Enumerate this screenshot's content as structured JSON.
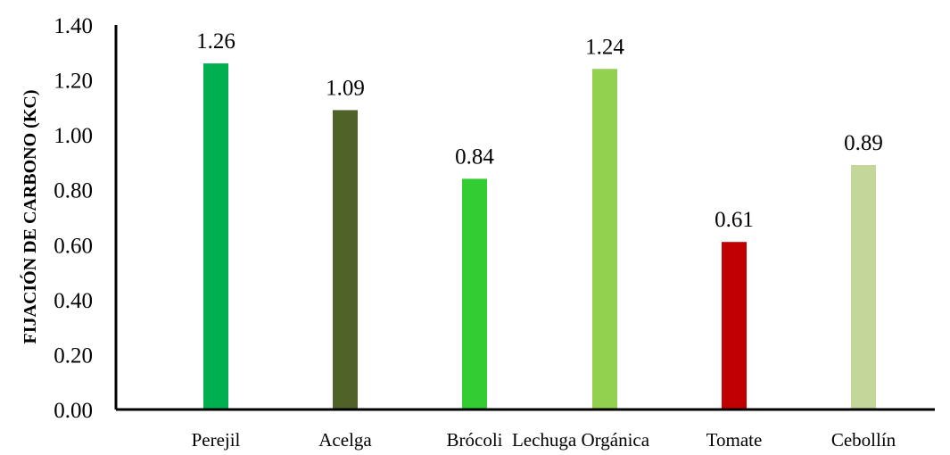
{
  "chart_data": {
    "type": "bar",
    "title": "",
    "xlabel": "",
    "ylabel": "FIJACIÓN DE CARBONO (KC)",
    "ylim": [
      0,
      1.4
    ],
    "yticks": [
      "0.00",
      "0.20",
      "0.40",
      "0.60",
      "0.80",
      "1.00",
      "1.20",
      "1.40"
    ],
    "grid": false,
    "legend": "none",
    "categories": [
      "Perejil",
      "Acelga",
      "Brócoli",
      "Lechuga Orgánica",
      "Tomate",
      "Cebollín"
    ],
    "values": [
      1.26,
      1.09,
      0.84,
      1.24,
      0.61,
      0.89
    ],
    "data_labels": [
      "1.26",
      "1.09",
      "0.84",
      "1.24",
      "0.61",
      "0.89"
    ],
    "colors": [
      "#00b050",
      "#4f6228",
      "#33cc33",
      "#92d050",
      "#c00000",
      "#c4d79b"
    ]
  }
}
